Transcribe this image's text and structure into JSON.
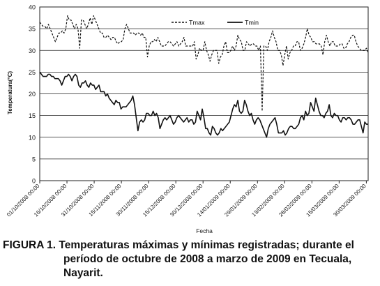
{
  "chart_data": {
    "type": "line",
    "title": "",
    "xlabel": "Fecha",
    "ylabel": "Temperatura(°C)",
    "ylim": [
      0,
      40
    ],
    "yticks": [
      0,
      5,
      10,
      15,
      20,
      25,
      30,
      35,
      40
    ],
    "xlim": [
      "2008-10-01",
      "2009-03-31"
    ],
    "xtick_labels": [
      "01/10/2008 00:00",
      "16/10/2008 00:00",
      "31/10/2008 00:00",
      "15/11/2008 00:00",
      "30/11/2008 00:00",
      "15/12/2008 00:00",
      "30/12/2008 00:00",
      "14/01/2009 00:00",
      "29/01/2009 00:00",
      "13/02/2009 00:00",
      "28/02/2009 00:00",
      "15/03/2009 00:00",
      "30/03/2009 00:00"
    ],
    "grid": "horizontal",
    "legend_position": "top-right",
    "series": [
      {
        "name": "Tmax",
        "style": "dashed",
        "color": "#111111",
        "values": [
          36.5,
          36,
          35.5,
          35.5,
          35,
          36,
          35,
          34,
          33,
          32,
          33,
          34,
          34,
          34.5,
          34,
          35,
          38,
          37,
          37,
          36,
          35,
          36,
          35,
          30.5,
          37,
          37,
          36,
          35,
          36,
          37.5,
          36,
          38,
          37,
          36,
          35,
          34,
          34,
          33,
          33,
          33.5,
          33,
          32.5,
          33,
          33,
          32,
          31.5,
          32,
          32,
          32.5,
          35,
          36,
          35,
          34,
          34,
          34,
          33.5,
          34,
          34,
          33.5,
          34,
          33,
          33,
          28.5,
          31,
          32,
          32,
          32.5,
          32,
          33,
          32,
          31,
          31,
          31,
          31.5,
          32,
          32,
          31.5,
          31,
          31.5,
          32,
          31,
          31.5,
          32,
          33,
          31,
          31,
          31,
          31,
          31,
          32,
          28,
          29,
          30.5,
          30,
          30,
          32,
          30,
          29,
          27.5,
          29,
          30,
          30,
          30,
          27,
          28.5,
          29,
          31,
          32,
          29.5,
          29.5,
          30,
          31,
          30,
          31,
          33.5,
          32.5,
          32,
          30,
          30,
          32,
          31.5,
          31,
          31.5,
          31.5,
          31,
          31,
          30,
          31,
          16,
          31,
          31,
          30,
          32,
          33,
          34.5,
          33,
          32,
          30,
          30,
          29,
          26.5,
          29,
          31,
          28,
          29.5,
          30,
          31,
          31,
          32,
          32,
          30,
          30.5,
          31.5,
          33,
          35,
          33.5,
          33,
          32,
          32,
          31.5,
          31.5,
          31.5,
          31,
          29,
          32,
          33.5,
          32,
          31,
          32,
          32,
          31,
          31,
          31,
          31.5,
          31.5,
          30.5,
          30.5,
          31.5,
          32,
          33,
          33.5,
          33.5,
          32,
          31,
          30.5,
          30,
          30,
          30,
          30.5,
          29.5
        ]
      },
      {
        "name": "Tmin",
        "style": "solid",
        "color": "#111111",
        "values": [
          25,
          24.5,
          24,
          24,
          24,
          24.5,
          24.5,
          24,
          24,
          23.5,
          23.5,
          23.5,
          23,
          22,
          23,
          24,
          24,
          24.5,
          24,
          23,
          24,
          24.5,
          24,
          22,
          21.5,
          22.5,
          22.5,
          23,
          22,
          21.5,
          22.5,
          22,
          22,
          21,
          21.5,
          22,
          20.5,
          20.5,
          20.5,
          19.5,
          20,
          19,
          18.5,
          18,
          17.5,
          18.5,
          18,
          18,
          16.5,
          17,
          17,
          17,
          17.5,
          18,
          18.5,
          19.5,
          17.5,
          14.5,
          11.5,
          13.5,
          14,
          13.5,
          14,
          15.5,
          15.5,
          15,
          15,
          16,
          15,
          15.5,
          14.5,
          12,
          13,
          14,
          14.5,
          14,
          14.5,
          15,
          14,
          13,
          13.5,
          14.5,
          15,
          14.5,
          14,
          13.5,
          14,
          14.5,
          13.5,
          14,
          14,
          13,
          13.5,
          16,
          15,
          14,
          16.5,
          14.5,
          12,
          12,
          11,
          10.5,
          12.5,
          12,
          11,
          10.5,
          11,
          12,
          11.5,
          12,
          12.5,
          13,
          13.5,
          15,
          16.5,
          17.5,
          17,
          18.5,
          16,
          15.5,
          16,
          18.5,
          17.5,
          16,
          15,
          15.5,
          14,
          13,
          14,
          14.5,
          14,
          13,
          12,
          11,
          10,
          12,
          13,
          13.5,
          14,
          14.5,
          13,
          11,
          11,
          11,
          11.5,
          10.5,
          11,
          12,
          12.5,
          12.5,
          12,
          12,
          12.5,
          13,
          14.5,
          15,
          14,
          16,
          15,
          15.5,
          18,
          17,
          16,
          19,
          17.5,
          16,
          15,
          15,
          14.5,
          15.5,
          16,
          17.5,
          15,
          14.5,
          15.5,
          15,
          15,
          14,
          13.5,
          14.5,
          14.5,
          14,
          14.5,
          14.5,
          14,
          13,
          13,
          13.5,
          14,
          14,
          12.5,
          11,
          13.5,
          13,
          13
        ]
      }
    ]
  },
  "caption": {
    "lead": "FIGURA 1. Temperaturas máximas y mínimas registradas; durante el",
    "rest": "período de octubre de 2008 a marzo de 2009 en Tecuala, Nayarit."
  }
}
